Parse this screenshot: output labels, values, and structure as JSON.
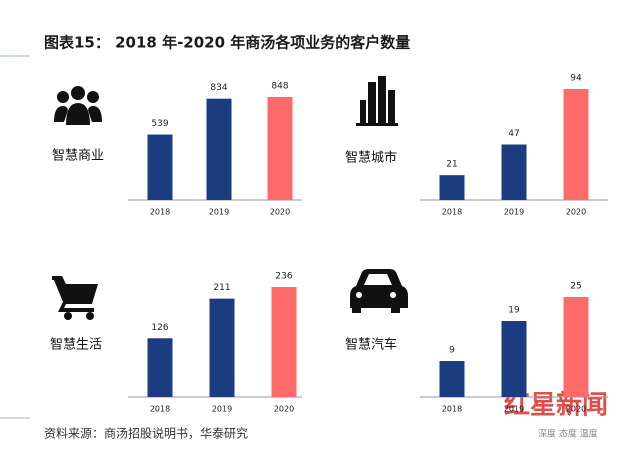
{
  "header": {
    "title": "图表15：  2018 年-2020 年商汤各项业务的客户数量"
  },
  "chart_data": [
    {
      "type": "bar",
      "title": "智慧商业",
      "categories": [
        "2018",
        "2019",
        "2020"
      ],
      "values": [
        539,
        834,
        848
      ],
      "colors": [
        "#1c3c82",
        "#1c3c82",
        "#ff6b6b"
      ]
    },
    {
      "type": "bar",
      "title": "智慧城市",
      "categories": [
        "2018",
        "2019",
        "2020"
      ],
      "values": [
        21,
        47,
        94
      ],
      "colors": [
        "#1c3c82",
        "#1c3c82",
        "#ff6b6b"
      ]
    },
    {
      "type": "bar",
      "title": "智慧生活",
      "categories": [
        "2018",
        "2019",
        "2020"
      ],
      "values": [
        126,
        211,
        236
      ],
      "colors": [
        "#1c3c82",
        "#1c3c82",
        "#ff6b6b"
      ]
    },
    {
      "type": "bar",
      "title": "智慧汽车",
      "categories": [
        "2018",
        "2019",
        "2020"
      ],
      "values": [
        9,
        19,
        25
      ],
      "colors": [
        "#1c3c82",
        "#1c3c82",
        "#ff6b6b"
      ]
    }
  ],
  "source": "资料来源：商汤招股说明书，华泰研究",
  "watermark": {
    "brand": "红星新闻",
    "slogan": "深度 态度 温度"
  }
}
